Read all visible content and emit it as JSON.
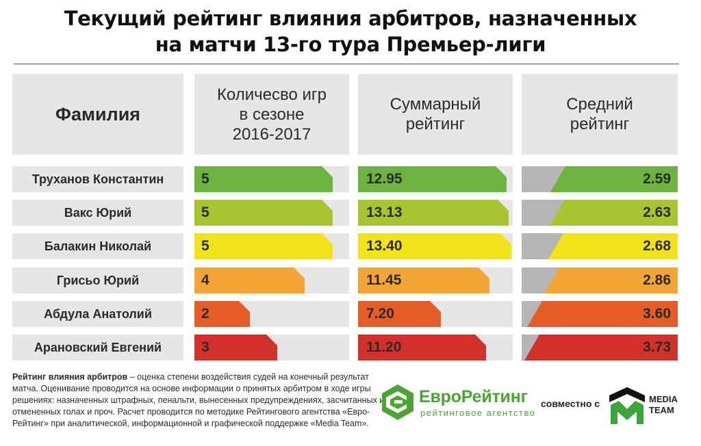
{
  "title": "Текущий рейтинг влияния арбитров, назначенных\nна матчи 13-го тура Премьер-лиги",
  "headers": {
    "name": "Фамилия",
    "games": "Количесво игр\nв сезоне\n2016-2017",
    "total": "Суммарный\nрейтинг",
    "average": "Средний\nрейтинг"
  },
  "chart_data": {
    "type": "table",
    "rows": [
      {
        "name": "Труханов Константин",
        "games": 5,
        "games_label": "5",
        "total": 12.95,
        "total_label": "12.95",
        "average": 2.59,
        "average_label": "2.59",
        "color": "#6db33f"
      },
      {
        "name": "Вакс Юрий",
        "games": 5,
        "games_label": "5",
        "total": 13.13,
        "total_label": "13.13",
        "average": 2.63,
        "average_label": "2.63",
        "color": "#a7c431"
      },
      {
        "name": "Балакин Николай",
        "games": 5,
        "games_label": "5",
        "total": 13.4,
        "total_label": "13.40",
        "average": 2.68,
        "average_label": "2.68",
        "color": "#f2e21a"
      },
      {
        "name": "Грисьо Юрий",
        "games": 4,
        "games_label": "4",
        "total": 11.45,
        "total_label": "11.45",
        "average": 2.86,
        "average_label": "2.86",
        "color": "#f3a535"
      },
      {
        "name": "Абдула Анатолий",
        "games": 2,
        "games_label": "2",
        "total": 7.2,
        "total_label": "7.20",
        "average": 3.6,
        "average_label": "3.60",
        "color": "#e55c26"
      },
      {
        "name": "Арановский Евгений",
        "games": 3,
        "games_label": "3",
        "total": 11.2,
        "total_label": "11.20",
        "average": 3.73,
        "average_label": "3.73",
        "color": "#d3302a"
      }
    ]
  },
  "footnote": {
    "term": "Рейтинг влияния арбитров",
    "text": " – оценка степени воздействия судей на конечный результат матча. Оценивание проводится на основе информации о принятых арбитром в ходе игры решениях: назначенных штрафных, пенальти, вынесенных предупреждениях, засчитанных или отмененных голах и проч. Расчет проводится по методике Рейтингового агентства «Евро-Рейтинг» при аналитической, информационной и графической поддержке «Media Team»."
  },
  "branding": {
    "euro_rating": "ЕвроРейтинг",
    "euro_rating_sub": "рейтинговое агентство",
    "jointly": "совместно с",
    "media_team": "MEDIA\nTEAM"
  },
  "colors": {
    "cell_bg": "#e6e6e6",
    "avg_gray": "#b5b5b5",
    "brand_green": "#4aa534"
  }
}
